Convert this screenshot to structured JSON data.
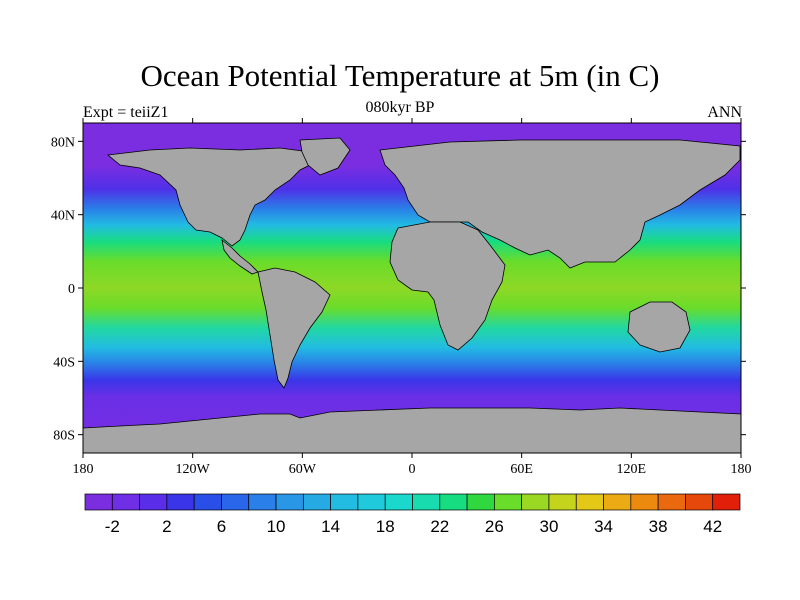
{
  "figure": {
    "title": "Ocean Potential Temperature at 5m (in C)",
    "subtitle": "080kyr BP",
    "left_note": "Expt = teiiZ1",
    "right_note": "ANN"
  },
  "map": {
    "projection": "cylindrical-equidistant",
    "land_color": "#a6a6a6",
    "coastline_color": "#000000",
    "lon_range": [
      -180,
      180
    ],
    "lat_range": [
      -90,
      90
    ],
    "x_ticks": [
      {
        "value": -180,
        "label": "180"
      },
      {
        "value": -120,
        "label": "120W"
      },
      {
        "value": -60,
        "label": "60W"
      },
      {
        "value": 0,
        "label": "0"
      },
      {
        "value": 60,
        "label": "60E"
      },
      {
        "value": 120,
        "label": "120E"
      },
      {
        "value": 180,
        "label": "180"
      }
    ],
    "y_ticks": [
      {
        "value": 80,
        "label": "80N"
      },
      {
        "value": 40,
        "label": "40N"
      },
      {
        "value": 0,
        "label": "0"
      },
      {
        "value": -40,
        "label": "40S"
      },
      {
        "value": -80,
        "label": "80S"
      }
    ]
  },
  "chart_data": {
    "type": "heatmap",
    "variable": "Ocean Potential Temperature at 5m",
    "units": "C",
    "color_levels": [
      -4,
      -2,
      0,
      2,
      4,
      6,
      8,
      10,
      12,
      14,
      16,
      18,
      20,
      22,
      24,
      26,
      28,
      30,
      32,
      34,
      36,
      38,
      40,
      42
    ],
    "colorbar_labels": [
      "-2",
      "2",
      "6",
      "10",
      "14",
      "18",
      "22",
      "26",
      "30",
      "34",
      "38",
      "42"
    ],
    "colors": [
      "#7a2ee0",
      "#6e2fe6",
      "#5a2ee8",
      "#3a35e8",
      "#2a4ee8",
      "#2a66ea",
      "#2a7fe8",
      "#2a96e6",
      "#26aae4",
      "#22bce2",
      "#1ecadc",
      "#1ad8cc",
      "#18dcb0",
      "#18dc80",
      "#30d840",
      "#6adc2a",
      "#9ad824",
      "#c4d41c",
      "#e4c818",
      "#ecaa14",
      "#ec8a10",
      "#ea680e",
      "#e6480c",
      "#e2200a"
    ],
    "zonal_mean_sst_by_lat": [
      {
        "lat": 80,
        "value": -1.8
      },
      {
        "lat": 60,
        "value": 2
      },
      {
        "lat": 40,
        "value": 14
      },
      {
        "lat": 20,
        "value": 24
      },
      {
        "lat": 0,
        "value": 27
      },
      {
        "lat": -20,
        "value": 23
      },
      {
        "lat": -40,
        "value": 13
      },
      {
        "lat": -55,
        "value": 3
      },
      {
        "lat": -70,
        "value": -1.8
      }
    ],
    "xlabel": "",
    "ylabel": ""
  }
}
